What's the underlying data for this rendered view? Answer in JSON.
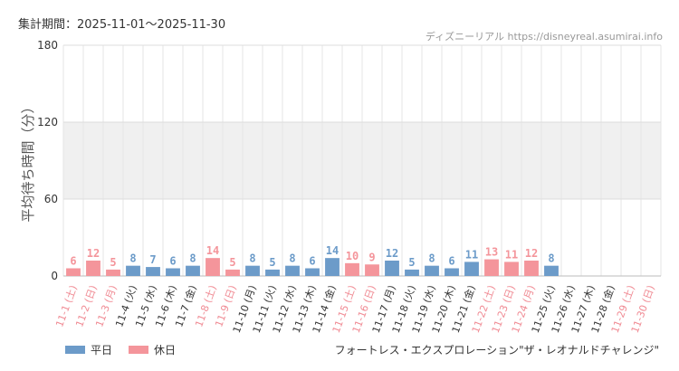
{
  "header": {
    "period": "集計期間：2025-11-01〜2025-11-30",
    "source": "ディズニーリアル https://disneyreal.asumirai.info"
  },
  "attraction_name": "フォートレス・エクスプロレーション\"ザ・レオナルドチャレンジ\"",
  "colors": {
    "weekday": "#6c9bc9",
    "holiday": "#f4959b",
    "band": "#f0f0f0"
  },
  "chart_data": {
    "type": "bar",
    "ylabel": "平均待ち時間（分）",
    "ylim": [
      0,
      180
    ],
    "yticks": [
      0,
      60,
      120,
      180
    ],
    "grid": true,
    "legend": [
      {
        "key": "weekday",
        "label": "平日"
      },
      {
        "key": "holiday",
        "label": "休日"
      }
    ],
    "categories": [
      "11-1 (土)",
      "11-2 (日)",
      "11-3 (月)",
      "11-4 (火)",
      "11-5 (水)",
      "11-6 (木)",
      "11-7 (金)",
      "11-8 (土)",
      "11-9 (日)",
      "11-10 (月)",
      "11-11 (火)",
      "11-12 (水)",
      "11-13 (木)",
      "11-14 (金)",
      "11-15 (土)",
      "11-16 (日)",
      "11-17 (月)",
      "11-18 (火)",
      "11-19 (水)",
      "11-20 (木)",
      "11-21 (金)",
      "11-22 (土)",
      "11-23 (日)",
      "11-24 (月)",
      "11-25 (火)",
      "11-26 (水)",
      "11-27 (木)",
      "11-28 (金)",
      "11-29 (土)",
      "11-30 (日)"
    ],
    "day_type": [
      "holiday",
      "holiday",
      "holiday",
      "weekday",
      "weekday",
      "weekday",
      "weekday",
      "holiday",
      "holiday",
      "weekday",
      "weekday",
      "weekday",
      "weekday",
      "weekday",
      "holiday",
      "holiday",
      "weekday",
      "weekday",
      "weekday",
      "weekday",
      "weekday",
      "holiday",
      "holiday",
      "holiday",
      "weekday",
      "weekday",
      "weekday",
      "weekday",
      "holiday",
      "holiday"
    ],
    "values": [
      6,
      12,
      5,
      8,
      7,
      6,
      8,
      14,
      5,
      8,
      5,
      8,
      6,
      14,
      10,
      9,
      12,
      5,
      8,
      6,
      11,
      13,
      11,
      12,
      8,
      null,
      null,
      null,
      null,
      null
    ]
  }
}
